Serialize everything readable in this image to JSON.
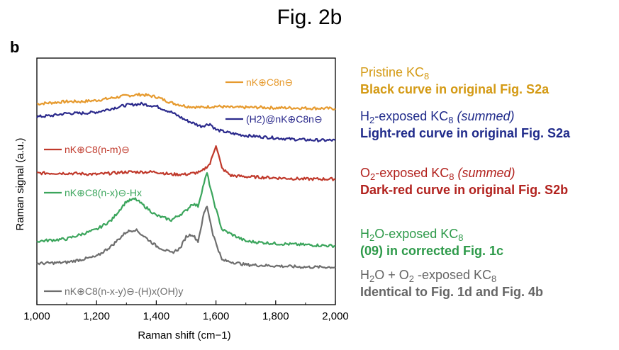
{
  "figure_title": "Fig. 2b",
  "panel_letter": "b",
  "colors": {
    "orange": "#E69A2E",
    "blue": "#2B2A8C",
    "red": "#C0392B",
    "green": "#3BA55C",
    "gray": "#6E6E6E",
    "ann_orange": "#D49A14",
    "ann_blue": "#1F2A8A",
    "ann_red": "#B2221E",
    "ann_green": "#2E9A4A",
    "ann_gray": "#666666"
  },
  "annotations": [
    {
      "color": "ann_orange",
      "line_pre": "Pristine KC",
      "line_sub": "8",
      "line_post": "",
      "bold": "Black curve in original Fig. S2a"
    },
    {
      "color": "ann_blue",
      "line_pre": "H",
      "line_sub": "2",
      "line_post": "-exposed KC",
      "line_sub2": "8",
      "line_italic": "(summed)",
      "bold": "Light-red curve in original Fig. S2a"
    },
    {
      "color": "ann_red",
      "line_pre": "O",
      "line_sub": "2",
      "line_post": "-exposed  KC",
      "line_sub2": "8",
      "line_italic": "(summed)",
      "bold": "Dark-red curve in original Fig. S2b"
    },
    {
      "color": "ann_green",
      "line_pre": "H",
      "line_sub": "2",
      "line_post": "O-exposed  KC",
      "line_sub2": "8",
      "line_italic": "",
      "bold": "(09) in corrected Fig. 1c"
    },
    {
      "color": "ann_gray",
      "line_pre": "H",
      "line_sub": "2",
      "line_post": "O + O",
      "line_sub2": "2",
      "line_post2": " -exposed  KC",
      "line_sub3": "8",
      "bold": "Identical to Fig. 1d and Fig. 4b"
    }
  ],
  "chart_data": {
    "type": "line",
    "xlabel": "Raman shift (cm−1)",
    "ylabel": "Raman signal (a.u.)",
    "xlim": [
      1000,
      2000
    ],
    "x_ticks": [
      1000,
      1200,
      1400,
      1600,
      1800,
      2000
    ],
    "x_tick_labels": [
      "1,000",
      "1,200",
      "1,400",
      "1,600",
      "1,800",
      "2,000"
    ],
    "y_ticks_shown": false,
    "grid": false,
    "series": [
      {
        "name": "nK⊕C8n⊖",
        "color": "orange",
        "x": [
          1000,
          1050,
          1100,
          1150,
          1200,
          1250,
          1300,
          1350,
          1400,
          1450,
          1500,
          1550,
          1600,
          1650,
          1700,
          1750,
          1800,
          1850,
          1900,
          1950,
          2000
        ],
        "y": [
          8.55,
          8.6,
          8.65,
          8.65,
          8.7,
          8.8,
          8.9,
          8.95,
          8.85,
          8.6,
          8.45,
          8.4,
          8.45,
          8.4,
          8.4,
          8.4,
          8.38,
          8.38,
          8.37,
          8.36,
          8.35
        ]
      },
      {
        "name": "(H2)@nK⊕C8n⊖",
        "color": "blue",
        "x": [
          1000,
          1050,
          1100,
          1150,
          1200,
          1250,
          1300,
          1350,
          1400,
          1450,
          1500,
          1550,
          1580,
          1600,
          1650,
          1700,
          1750,
          1800,
          1850,
          1900,
          1950,
          2000
        ],
        "y": [
          8.0,
          8.05,
          8.15,
          8.15,
          8.2,
          8.35,
          8.5,
          8.55,
          8.45,
          8.2,
          7.85,
          7.6,
          7.7,
          7.45,
          7.3,
          7.2,
          7.15,
          7.1,
          7.05,
          7.02,
          7.0,
          7.0
        ]
      },
      {
        "name": "nK⊕C8(n-m)⊖",
        "color": "red",
        "x": [
          1000,
          1100,
          1200,
          1300,
          1400,
          1450,
          1500,
          1550,
          1580,
          1600,
          1620,
          1650,
          1700,
          1800,
          1900,
          2000
        ],
        "y": [
          5.6,
          5.6,
          5.55,
          5.65,
          5.65,
          5.55,
          5.55,
          5.65,
          6.0,
          6.8,
          5.8,
          5.5,
          5.45,
          5.4,
          5.35,
          5.35
        ]
      },
      {
        "name": "nK⊕C8(n-x)⊖-Hx",
        "color": "green",
        "x": [
          1000,
          1100,
          1200,
          1250,
          1300,
          1330,
          1350,
          1400,
          1450,
          1500,
          1520,
          1540,
          1560,
          1570,
          1590,
          1620,
          1700,
          1800,
          1900,
          2000
        ],
        "y": [
          2.7,
          2.8,
          3.2,
          3.6,
          4.4,
          4.5,
          4.3,
          3.8,
          3.6,
          4.0,
          4.3,
          4.2,
          5.2,
          5.6,
          4.5,
          3.2,
          2.7,
          2.6,
          2.55,
          2.5
        ]
      },
      {
        "name": "nK⊕C8(n-x-y)⊖-(H)x(OH)y",
        "color": "gray",
        "x": [
          1000,
          1100,
          1200,
          1250,
          1300,
          1330,
          1350,
          1400,
          1450,
          1480,
          1500,
          1520,
          1540,
          1560,
          1570,
          1590,
          1620,
          1700,
          1800,
          1900,
          2000
        ],
        "y": [
          1.75,
          1.8,
          2.05,
          2.5,
          3.1,
          3.2,
          3.0,
          2.5,
          2.2,
          2.4,
          2.9,
          3.0,
          2.7,
          3.9,
          4.2,
          3.0,
          1.9,
          1.7,
          1.65,
          1.6,
          1.6
        ]
      }
    ],
    "ylim": [
      0,
      10.5
    ]
  }
}
